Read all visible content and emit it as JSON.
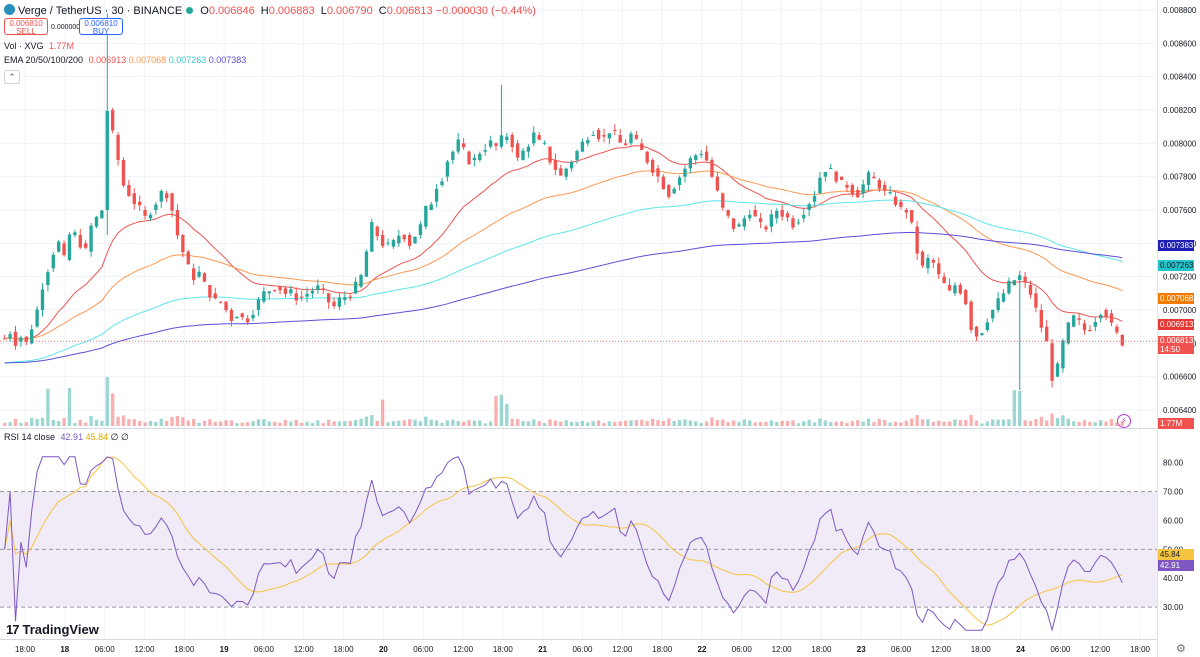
{
  "header": {
    "symbol": "Verge / TetherUS · 30 · BINANCE",
    "open_label": "O",
    "open": "0.006846",
    "high_label": "H",
    "high": "0.006883",
    "low_label": "L",
    "low": "0.006790",
    "close_label": "C",
    "close": "0.006813",
    "change": "−0.000030 (−0.44%)"
  },
  "trade": {
    "sell_price": "0.006810",
    "sell_label": "SELL",
    "spread": "0.000000",
    "buy_price": "0.006810",
    "buy_label": "BUY"
  },
  "volume_legend": {
    "label": "Vol · XVG",
    "value": "1.77M"
  },
  "ema_legend": {
    "label": "EMA 20/50/100/200",
    "ema20": "0.006913",
    "ema50": "0.007068",
    "ema100": "0.007263",
    "ema200": "0.007383"
  },
  "rsi_legend": {
    "label": "RSI 14 close",
    "rsi": "42.91",
    "ma": "45.84",
    "extra1": "∅",
    "extra2": "∅"
  },
  "brand": {
    "logo_text": "TradingView",
    "mark": "17"
  },
  "colors": {
    "up": "#26a69a",
    "down": "#ef5350",
    "ema20": "#ef5350",
    "ema50": "#ff9850",
    "ema100": "#5ee6ea",
    "ema200": "#5b4fd8",
    "rsi": "#7e57c2",
    "rsi_ma": "#f5c542",
    "rsi_band": "#ede7f6"
  },
  "chart_data": [
    {
      "type": "candlestick",
      "title": "Verge / TetherUS · 30 · BINANCE",
      "ylim": [
        0.0064,
        0.0088
      ],
      "y_ticks": [
        "0.008800",
        "0.008600",
        "0.008400",
        "0.008200",
        "0.008000",
        "0.007800",
        "0.007600",
        "0.007400",
        "0.007200",
        "0.007000",
        "0.006800",
        "0.006600",
        "0.006400"
      ],
      "x_ticks": [
        "18:00",
        "18",
        "06:00",
        "12:00",
        "18:00",
        "19",
        "06:00",
        "12:00",
        "18:00",
        "20",
        "06:00",
        "12:00",
        "18:00",
        "21",
        "06:00",
        "12:00",
        "18:00",
        "22",
        "06:00",
        "12:00",
        "18:00",
        "23",
        "06:00",
        "12:00",
        "18:00",
        "24",
        "06:00",
        "12:00",
        "18:00"
      ],
      "price_series": [
        [
          0.00683,
          0.00687,
          0.00681,
          0.00684,
          0.0068,
          0.0069,
          0.007,
          0.00715,
          0.00725,
          0.00735,
          0.0074,
          0.0073,
          0.00745,
          0.00745,
          0.0074,
          0.00735,
          0.0075,
          0.00755,
          0.0076,
          0.0082,
          0.00805,
          0.0079,
          0.00775,
          0.0077,
          0.00765,
          0.0076,
          0.00755,
          0.0076,
          0.00765,
          0.0077,
          0.0077,
          0.0076,
          0.00745,
          0.00735,
          0.00725,
          0.0072,
          0.00722,
          0.00715,
          0.0071,
          0.00705,
          0.00705,
          0.007,
          0.00695,
          0.00698,
          0.00695,
          0.00695,
          0.007,
          0.00705,
          0.0071,
          0.00712,
          0.00714,
          0.00713,
          0.0071,
          0.0071,
          0.00708,
          0.00708,
          0.0071,
          0.00712,
          0.00713,
          0.0071,
          0.00705,
          0.00702,
          0.00706,
          0.00708,
          0.0071,
          0.00714,
          0.0072,
          0.00735,
          0.0075,
          0.00745,
          0.0074,
          0.00738,
          0.0074,
          0.00745,
          0.00745,
          0.0074,
          0.00745,
          0.0075,
          0.0076,
          0.00765,
          0.00775,
          0.0078,
          0.0079,
          0.00795,
          0.008,
          0.00795,
          0.0079,
          0.0079,
          0.00795,
          0.00798,
          0.008,
          0.00798,
          0.00802,
          0.00805,
          0.008,
          0.0079,
          0.00795,
          0.008,
          0.00805,
          0.008,
          0.00798,
          0.0079,
          0.00785,
          0.0078,
          0.00785,
          0.0079,
          0.00795,
          0.008,
          0.00805,
          0.00808,
          0.00805,
          0.00803,
          0.00808,
          0.00805,
          0.008,
          0.008,
          0.00805,
          0.008,
          0.00795,
          0.0079,
          0.00785,
          0.0078,
          0.00775,
          0.0077,
          0.00775,
          0.0078,
          0.00785,
          0.0079,
          0.00793,
          0.00795,
          0.0079,
          0.0078,
          0.0077,
          0.0076,
          0.00755,
          0.0075,
          0.0075,
          0.00755,
          0.0076,
          0.00755,
          0.0075,
          0.0075,
          0.00755,
          0.0076,
          0.00758,
          0.00755,
          0.00752,
          0.00755,
          0.0076,
          0.00765,
          0.0077,
          0.0078,
          0.00785,
          0.00783,
          0.0078,
          0.00775,
          0.00775,
          0.00772,
          0.0077,
          0.00775,
          0.0078,
          0.00778,
          0.00775,
          0.0077,
          0.00768,
          0.00765,
          0.0076,
          0.0076,
          0.0075,
          0.00735,
          0.00725,
          0.0073,
          0.00728,
          0.0072,
          0.00715,
          0.0071,
          0.00715,
          0.00712,
          0.00705,
          0.0069,
          0.00685,
          0.00688,
          0.00695,
          0.007,
          0.00705,
          0.0071,
          0.00715,
          0.00718,
          0.0072,
          0.00715,
          0.0071,
          0.007,
          0.0069,
          0.0068,
          0.0066,
          0.00665,
          0.0068,
          0.0069,
          0.00695,
          0.00692,
          0.00688,
          0.0069,
          0.00695,
          0.007,
          0.00698,
          0.0069,
          0.00685,
          0.00681
        ]
      ]
    },
    {
      "type": "line",
      "title": "RSI 14 close",
      "ylim": [
        20,
        84
      ],
      "y_ticks": [
        "80.00",
        "70.00",
        "60.00",
        "50.00",
        "40.00",
        "30.00"
      ],
      "bands": [
        30,
        50,
        70
      ]
    }
  ]
}
